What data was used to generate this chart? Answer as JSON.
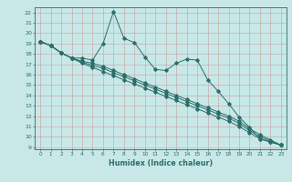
{
  "xlabel": "Humidex (Indice chaleur)",
  "x_values": [
    0,
    1,
    2,
    3,
    4,
    5,
    6,
    7,
    8,
    9,
    10,
    11,
    12,
    13,
    14,
    15,
    16,
    17,
    18,
    19,
    20,
    21,
    22,
    23
  ],
  "line1": [
    19.2,
    18.8,
    18.1,
    17.6,
    17.6,
    17.4,
    19.0,
    22.1,
    19.5,
    19.1,
    17.7,
    16.5,
    16.4,
    17.1,
    17.5,
    17.4,
    15.5,
    14.4,
    13.2,
    11.9,
    10.9,
    9.8,
    9.5,
    9.2
  ],
  "line2": [
    19.2,
    18.8,
    18.1,
    17.6,
    17.3,
    17.1,
    16.8,
    16.4,
    16.0,
    15.6,
    15.2,
    14.8,
    14.4,
    14.0,
    13.6,
    13.2,
    12.8,
    12.4,
    12.0,
    11.5,
    10.8,
    10.2,
    9.7,
    9.2
  ],
  "line3": [
    19.2,
    18.8,
    18.1,
    17.6,
    17.2,
    16.9,
    16.6,
    16.2,
    15.8,
    15.4,
    15.0,
    14.6,
    14.2,
    13.8,
    13.4,
    13.0,
    12.6,
    12.2,
    11.8,
    11.3,
    10.6,
    10.0,
    9.6,
    9.2
  ],
  "line4": [
    19.2,
    18.8,
    18.1,
    17.6,
    17.1,
    16.7,
    16.3,
    15.9,
    15.5,
    15.1,
    14.7,
    14.3,
    13.9,
    13.5,
    13.1,
    12.7,
    12.3,
    11.9,
    11.5,
    11.0,
    10.4,
    9.8,
    9.5,
    9.2
  ],
  "color": "#2a6e6a",
  "bg_color": "#c8e8e8",
  "grid_color_h": "#d8a0a0",
  "grid_color_v": "#d8a0a0",
  "ylim": [
    8.8,
    22.5
  ],
  "yticks": [
    9,
    10,
    11,
    12,
    13,
    14,
    15,
    16,
    17,
    18,
    19,
    20,
    21,
    22
  ],
  "xlim": [
    -0.5,
    23.5
  ]
}
